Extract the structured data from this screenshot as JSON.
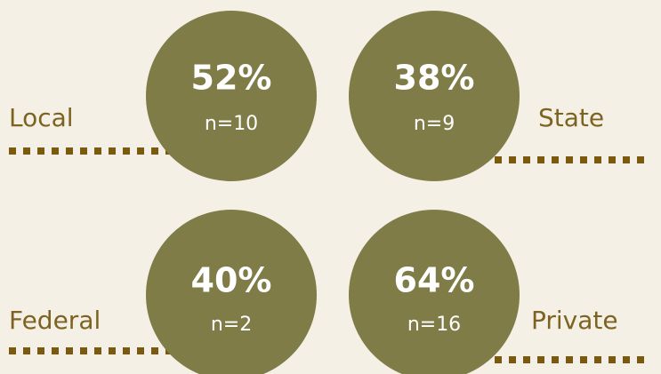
{
  "items": [
    {
      "label": "Local",
      "percent": "52%",
      "n": "n=10"
    },
    {
      "label": "State",
      "percent": "38%",
      "n": "n=9"
    },
    {
      "label": "Federal",
      "percent": "40%",
      "n": "n=2"
    },
    {
      "label": "Private",
      "percent": "64%",
      "n": "n=16"
    }
  ]
}
